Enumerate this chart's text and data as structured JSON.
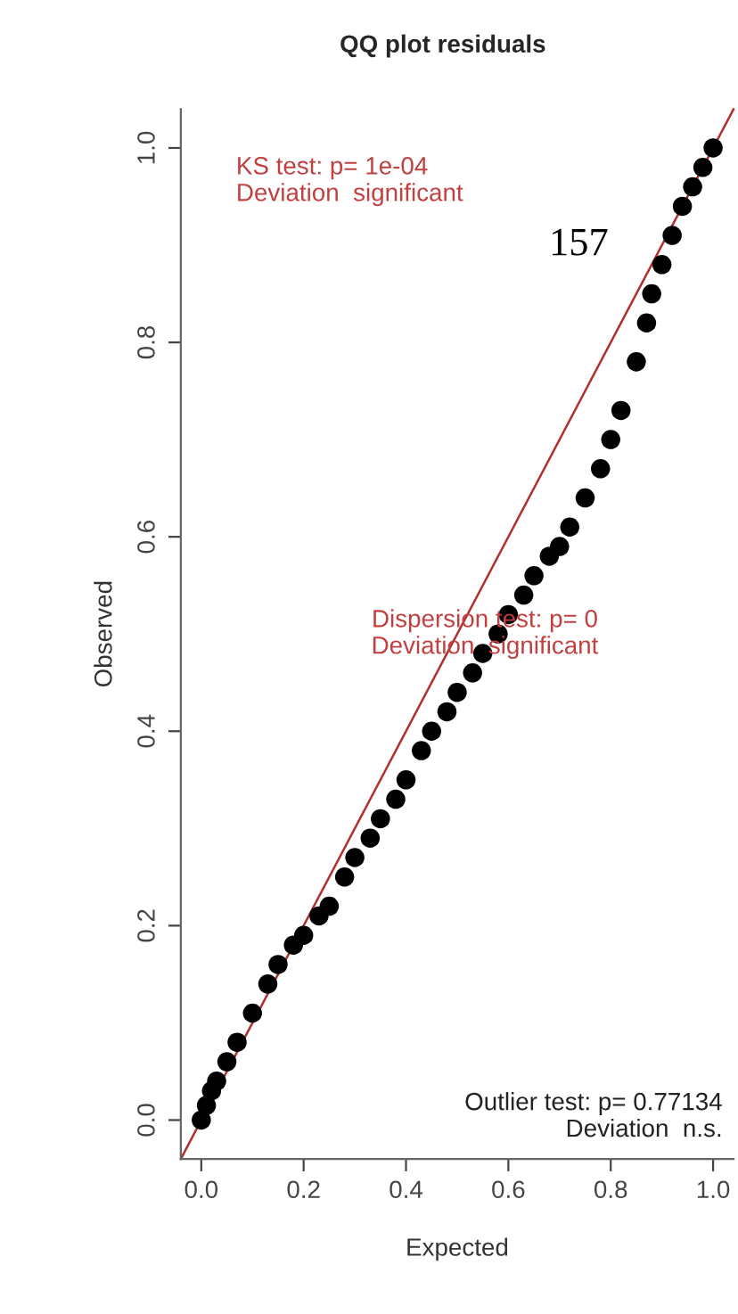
{
  "chart_data": {
    "type": "scatter",
    "title": "QQ plot residuals",
    "xlabel": "Expected",
    "ylabel": "Observed",
    "series": [
      {
        "color": "#000000",
        "marker": "circle",
        "x": [
          0.0,
          0.01,
          0.02,
          0.03,
          0.05,
          0.07,
          0.1,
          0.13,
          0.15,
          0.18,
          0.2,
          0.23,
          0.25,
          0.28,
          0.3,
          0.33,
          0.35,
          0.38,
          0.4,
          0.43,
          0.45,
          0.48,
          0.5,
          0.53,
          0.55,
          0.58,
          0.6,
          0.63,
          0.65,
          0.68,
          0.7,
          0.72,
          0.75,
          0.78,
          0.8,
          0.82,
          0.85,
          0.87,
          0.88,
          0.9,
          0.92,
          0.94,
          0.96,
          0.98,
          1.0
        ],
        "values": [
          0.0,
          0.015,
          0.03,
          0.04,
          0.06,
          0.08,
          0.11,
          0.14,
          0.16,
          0.18,
          0.19,
          0.21,
          0.22,
          0.25,
          0.27,
          0.29,
          0.31,
          0.33,
          0.35,
          0.38,
          0.4,
          0.42,
          0.44,
          0.46,
          0.48,
          0.5,
          0.52,
          0.54,
          0.56,
          0.58,
          0.59,
          0.61,
          0.64,
          0.67,
          0.7,
          0.73,
          0.78,
          0.82,
          0.85,
          0.88,
          0.91,
          0.94,
          0.96,
          0.98,
          1.0
        ]
      },
      {
        "type": "line",
        "color": "#b03030",
        "marker": "none",
        "line_style": "solid",
        "x": [
          -0.04,
          1.04
        ],
        "values": [
          -0.04,
          1.04
        ]
      }
    ],
    "xlim": [
      -0.04,
      1.04
    ],
    "ylim": [
      -0.04,
      1.04
    ],
    "xticks": [
      {
        "value": 0,
        "label": "0.0"
      },
      {
        "value": 0.2,
        "label": "0.2"
      },
      {
        "value": 0.4,
        "label": "0.4"
      },
      {
        "value": 0.6,
        "label": "0.6"
      },
      {
        "value": 0.8,
        "label": "0.8"
      },
      {
        "value": 1,
        "label": "1.0"
      }
    ],
    "yticks": [
      {
        "value": 0,
        "label": "0.0"
      },
      {
        "value": 0.2,
        "label": "0.2"
      },
      {
        "value": 0.4,
        "label": "0.4"
      },
      {
        "value": 0.6,
        "label": "0.6"
      },
      {
        "value": 0.8,
        "label": "0.8"
      },
      {
        "value": 1,
        "label": "1.0"
      }
    ],
    "grid": false,
    "legend": false,
    "annotations": [
      "KS test: p= 1e-04\nDeviation  significant",
      "Dispersion test: p= 0\nDeviation  significant",
      "Outlier test: p= 0.77134\nDeviation  n.s.",
      "157"
    ]
  }
}
